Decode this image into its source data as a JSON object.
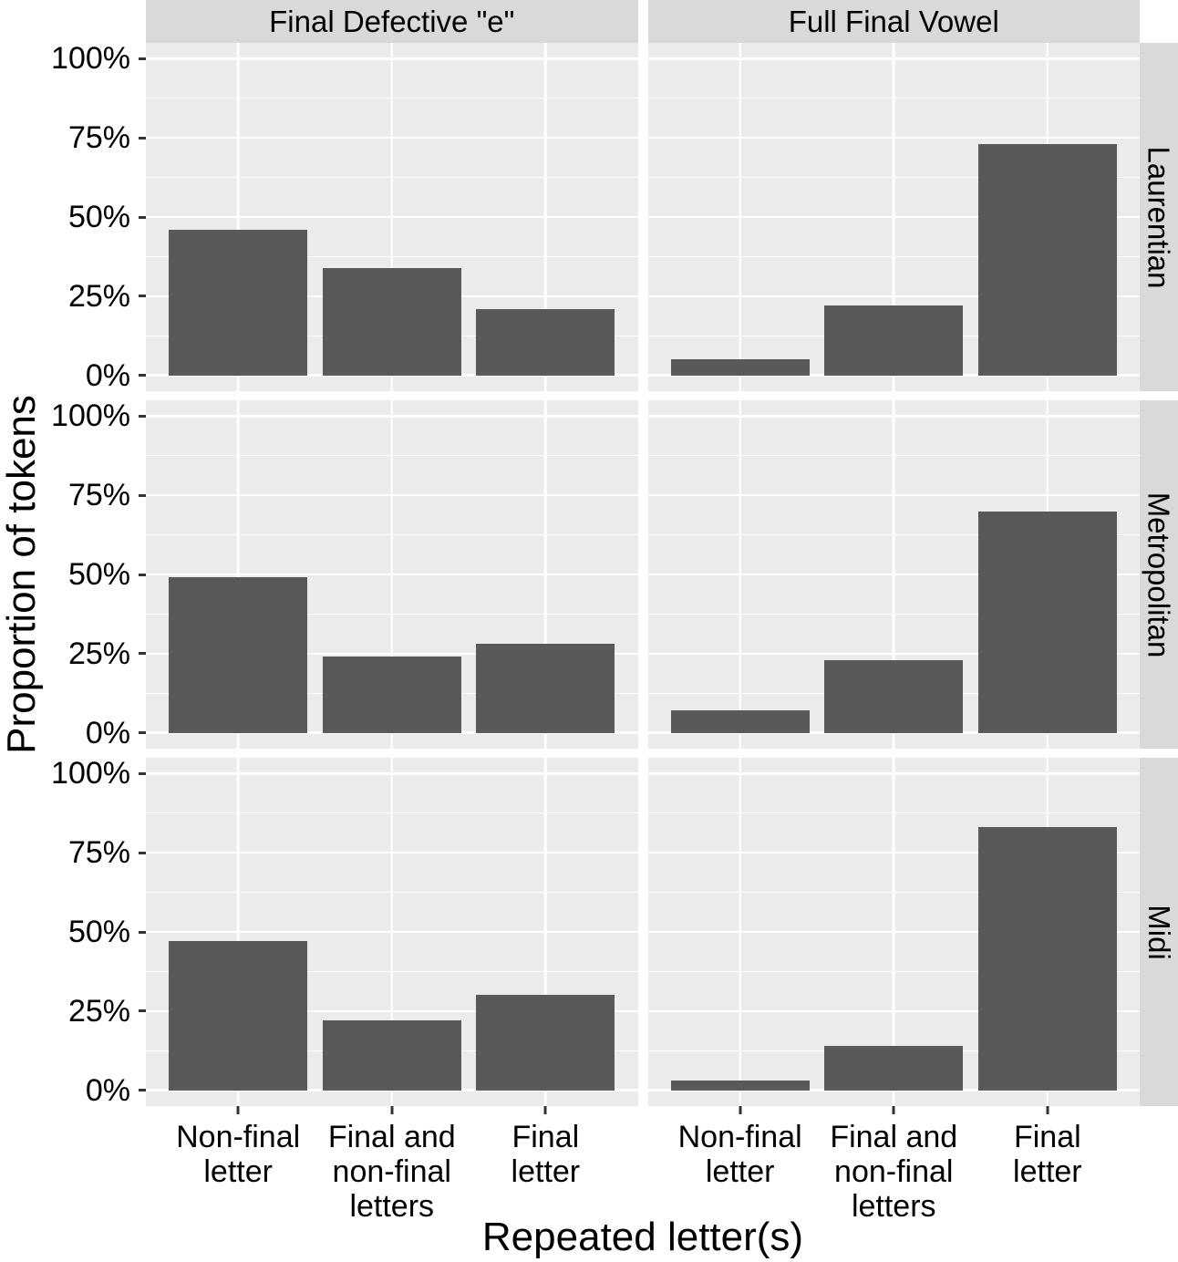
{
  "chart_data": {
    "type": "bar",
    "title": "",
    "ylabel": "Proportion of tokens",
    "xlabel": "Repeated letter(s)",
    "facet_cols": [
      "Final Defective \"e\"",
      "Full Final Vowel"
    ],
    "facet_rows": [
      "Laurentian",
      "Metropolitan",
      "Midi"
    ],
    "categories": [
      "Non-final letter",
      "Final and non-final letters",
      "Final letter"
    ],
    "x_tick_label_lines": [
      [
        "Non-final",
        "letter"
      ],
      [
        "Final and",
        "non-final",
        "letters"
      ],
      [
        "Final",
        "letter"
      ]
    ],
    "y_ticks": [
      {
        "value": 100,
        "label": "100%"
      },
      {
        "value": 75,
        "label": "75%"
      },
      {
        "value": 50,
        "label": "50%"
      },
      {
        "value": 25,
        "label": "25%"
      },
      {
        "value": 0,
        "label": "0%"
      }
    ],
    "ylim": [
      0,
      100
    ],
    "unit": "percent of tokens",
    "grid": "white major gridlines at 25% steps with minor gridlines at 12.5% steps on grey panels; vertical major gridlines at category centers",
    "legend": "none",
    "series": [
      {
        "row": "Laurentian",
        "col": "Final Defective \"e\"",
        "values": [
          46,
          34,
          21
        ]
      },
      {
        "row": "Laurentian",
        "col": "Full Final Vowel",
        "values": [
          5,
          22,
          73
        ]
      },
      {
        "row": "Metropolitan",
        "col": "Final Defective \"e\"",
        "values": [
          49,
          24,
          28
        ]
      },
      {
        "row": "Metropolitan",
        "col": "Full Final Vowel",
        "values": [
          7,
          23,
          70
        ]
      },
      {
        "row": "Midi",
        "col": "Final Defective \"e\"",
        "values": [
          47,
          22,
          30
        ]
      },
      {
        "row": "Midi",
        "col": "Full Final Vowel",
        "values": [
          3,
          14,
          83
        ]
      }
    ],
    "style": {
      "bar_color": "#595959",
      "panel_bg": "#EBEBEB",
      "strip_bg": "#D9D9D9",
      "grid_color": "#FFFFFF",
      "tick_color": "#333333",
      "text_color": "#000000",
      "page_bg": "#FFFFFF"
    }
  }
}
